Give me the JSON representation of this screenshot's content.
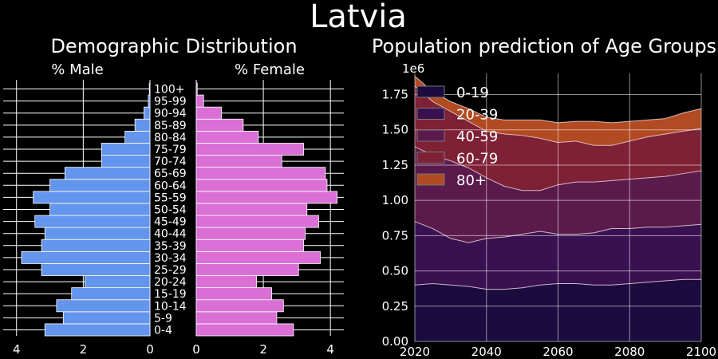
{
  "figure": {
    "title": "Latvia",
    "background": "#000000"
  },
  "chart_data": [
    {
      "type": "bar",
      "orientation": "horizontal-pyramid",
      "title": "Demographic Distribution",
      "subtitle_left": "% Male",
      "subtitle_right": "% Female",
      "categories": [
        "0-4",
        "5-9",
        "10-14",
        "15-19",
        "20-24",
        "25-29",
        "30-34",
        "35-39",
        "40-44",
        "45-49",
        "50-54",
        "55-59",
        "60-64",
        "65-69",
        "70-74",
        "75-79",
        "80-84",
        "85-89",
        "90-94",
        "95-99",
        "100+"
      ],
      "male_xticks": [
        "4",
        "2",
        "0"
      ],
      "female_xticks": [
        "0",
        "2",
        "4"
      ],
      "xlim": [
        0,
        4.4
      ],
      "grid": true,
      "series": [
        {
          "name": "% Male",
          "color": "#6495ED",
          "values": [
            3.15,
            2.6,
            2.8,
            2.35,
            1.95,
            3.25,
            3.85,
            3.25,
            3.15,
            3.45,
            3.0,
            3.5,
            3.0,
            2.55,
            1.45,
            1.45,
            0.75,
            0.45,
            0.18,
            0.05,
            0.02
          ]
        },
        {
          "name": "% Female",
          "color": "#DA70D6",
          "values": [
            2.9,
            2.4,
            2.6,
            2.25,
            1.8,
            3.05,
            3.7,
            3.2,
            3.25,
            3.65,
            3.3,
            4.2,
            3.9,
            3.85,
            2.55,
            3.2,
            1.85,
            1.4,
            0.75,
            0.22,
            0.03
          ]
        }
      ]
    },
    {
      "type": "area",
      "stacked": true,
      "title": "Population prediction of Age Groups",
      "offset_label": "1e6",
      "x": [
        2020,
        2025,
        2030,
        2035,
        2040,
        2045,
        2050,
        2055,
        2060,
        2065,
        2070,
        2075,
        2080,
        2085,
        2090,
        2095,
        2100
      ],
      "xticks": [
        "2020",
        "2040",
        "2060",
        "2080",
        "2100"
      ],
      "xlim": [
        2020,
        2100
      ],
      "yticks": [
        "0.00",
        "0.25",
        "0.50",
        "0.75",
        "1.00",
        "1.25",
        "1.50",
        "1.75"
      ],
      "ylim": [
        0,
        1.9
      ],
      "y_unit_scale": 1000000,
      "grid": true,
      "legend_position": "top-left",
      "series": [
        {
          "name": "0-19",
          "color": "#1B0B3E",
          "values": [
            0.4,
            0.41,
            0.4,
            0.39,
            0.37,
            0.37,
            0.38,
            0.4,
            0.41,
            0.41,
            0.4,
            0.4,
            0.41,
            0.42,
            0.43,
            0.44,
            0.44
          ]
        },
        {
          "name": "20-39",
          "color": "#3A1150",
          "values": [
            0.45,
            0.39,
            0.33,
            0.31,
            0.36,
            0.37,
            0.38,
            0.38,
            0.35,
            0.35,
            0.37,
            0.4,
            0.39,
            0.39,
            0.38,
            0.38,
            0.39
          ]
        },
        {
          "name": "40-59",
          "color": "#5B1A4C",
          "values": [
            0.53,
            0.52,
            0.55,
            0.53,
            0.43,
            0.36,
            0.31,
            0.29,
            0.35,
            0.37,
            0.36,
            0.34,
            0.35,
            0.35,
            0.36,
            0.37,
            0.38
          ]
        },
        {
          "name": "60-79",
          "color": "#7E2036",
          "values": [
            0.43,
            0.38,
            0.35,
            0.33,
            0.33,
            0.37,
            0.39,
            0.37,
            0.3,
            0.29,
            0.26,
            0.25,
            0.27,
            0.29,
            0.3,
            0.3,
            0.3
          ]
        },
        {
          "name": "80+",
          "color": "#B24A22",
          "values": [
            0.07,
            0.07,
            0.07,
            0.09,
            0.1,
            0.1,
            0.11,
            0.13,
            0.14,
            0.14,
            0.17,
            0.16,
            0.14,
            0.12,
            0.11,
            0.13,
            0.14
          ]
        }
      ]
    }
  ]
}
